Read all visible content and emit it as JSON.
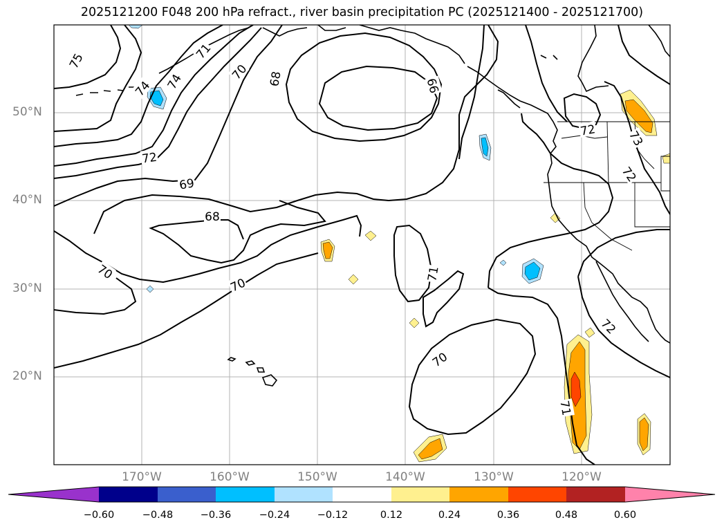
{
  "title": "2025121200 F048 200 hPa refract., river basin precipitation PC (2025121400 - 2025121700)",
  "lat_labels": [
    "50°N",
    "40°N",
    "30°N",
    "20°N"
  ],
  "lon_labels": [
    "170°W",
    "160°W",
    "150°W",
    "140°W",
    "130°W",
    "120°W"
  ],
  "contour_labels": [
    "75",
    "71",
    "70",
    "74",
    "74",
    "68",
    "66",
    "72",
    "69",
    "68",
    "70",
    "70",
    "71",
    "70",
    "72",
    "72",
    "73",
    "71",
    "72"
  ],
  "colorbar": {
    "colors": [
      "#9932cc",
      "#00008b",
      "#3a5fcd",
      "#00bfff",
      "#b0e2ff",
      "#ffffff",
      "#fff08f",
      "#ffa500",
      "#ff4500",
      "#b22222",
      "#ff82ab"
    ],
    "labels": [
      "−0.60",
      "−0.48",
      "−0.36",
      "−0.24",
      "−0.12",
      "0.12",
      "0.24",
      "0.36",
      "0.48",
      "0.60"
    ]
  },
  "fill_colors": {
    "light_blue": "#b0e2ff",
    "blue": "#00bfff",
    "yellow": "#fff08f",
    "orange": "#ffa500",
    "red": "#ff4500"
  }
}
